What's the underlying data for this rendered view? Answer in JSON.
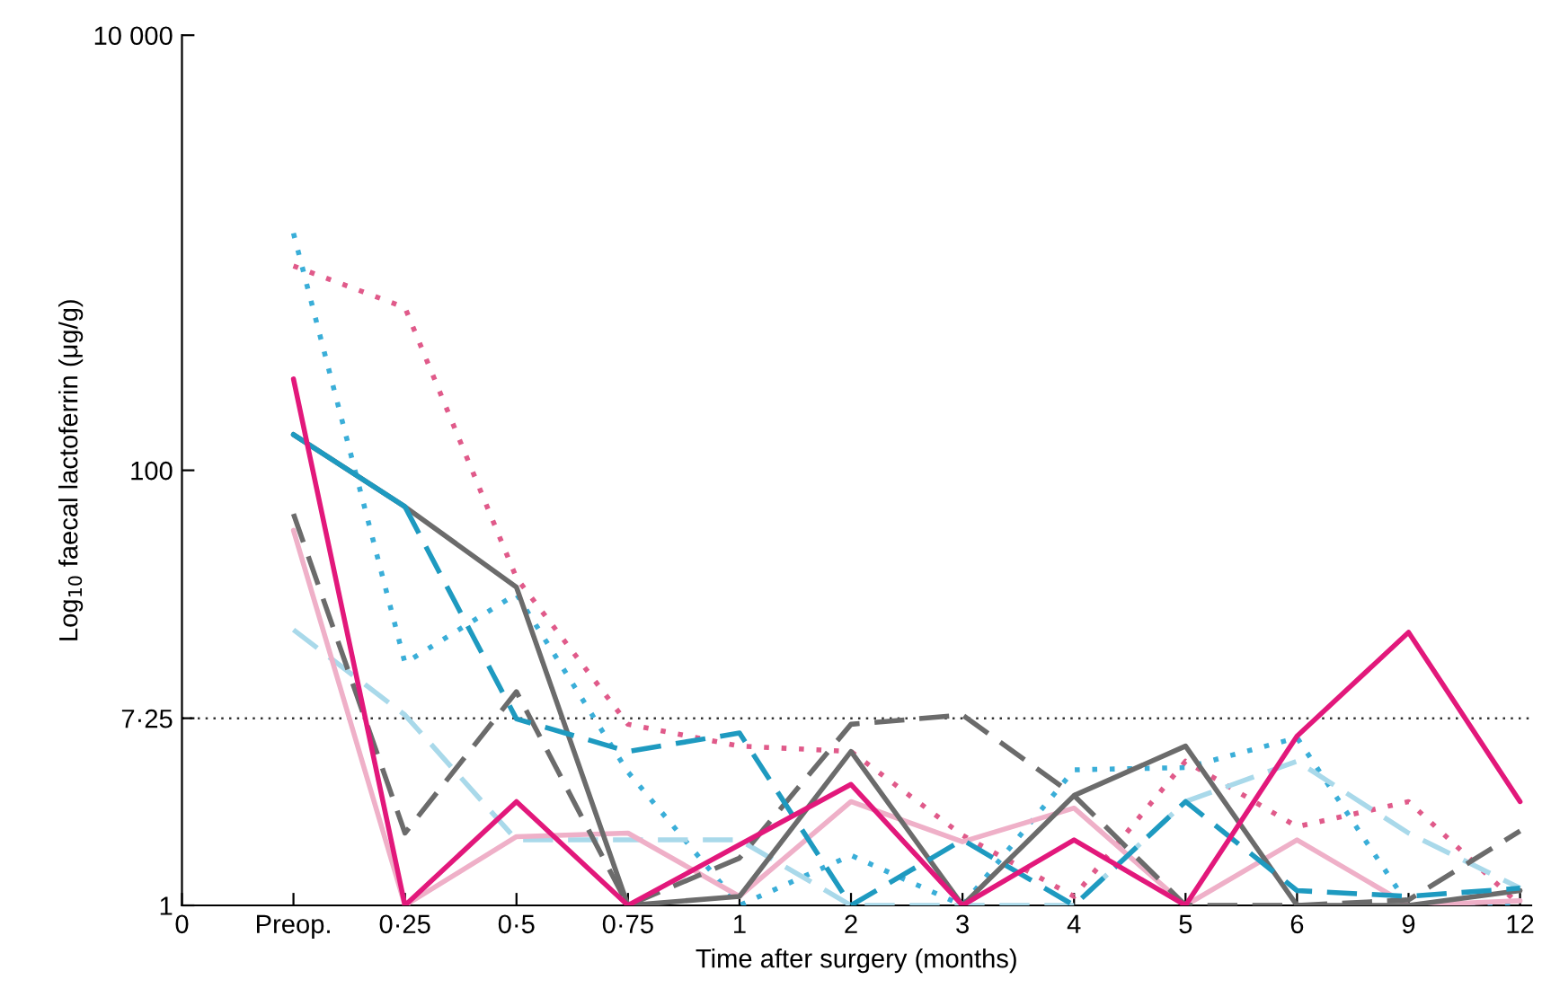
{
  "chart_data": {
    "type": "line",
    "xlabel": "Time after surgery (months)",
    "ylabel": "Log$_{10}$ faecal lactoferrin (μg/g)",
    "categories": [
      "0",
      "Preop.",
      "0·25",
      "0·5",
      "0·75",
      "1",
      "2",
      "3",
      "4",
      "5",
      "6",
      "9",
      "12"
    ],
    "log": "y",
    "ylim": [
      1,
      10000
    ],
    "yticks": [
      1,
      {
        "value": 7.25,
        "label": "7·25"
      },
      100,
      {
        "value": 10000,
        "label": "10 000"
      }
    ],
    "grid": false,
    "legend": false,
    "marker": "none",
    "ref_lines": [
      {
        "axis": "y",
        "value": 7.25,
        "color": "#333333",
        "line_style": "dotted"
      }
    ],
    "series": [
      {
        "color": "#e05a8a",
        "line_style": "dotted",
        "values": [
          null,
          870,
          560,
          32,
          6.8,
          5.4,
          5.1,
          2.1,
          1.1,
          4.6,
          2.3,
          3.0,
          1
        ]
      },
      {
        "color": "#3aaed8",
        "line_style": "dotted",
        "values": [
          null,
          1230,
          13,
          27,
          4.1,
          1,
          1.7,
          1,
          4.2,
          4.3,
          5.9,
          1,
          1
        ]
      },
      {
        "color": "#a9d9ea",
        "line_style": "dashed",
        "values": [
          null,
          18.5,
          7.5,
          2.0,
          2.0,
          2.0,
          1,
          1,
          1,
          3.0,
          4.6,
          2.15,
          1.2
        ]
      },
      {
        "color": "#efb0c8",
        "line_style": "solid",
        "values": [
          null,
          53,
          1,
          2.07,
          2.15,
          1.1,
          3.0,
          1.96,
          2.8,
          1,
          2.0,
          1,
          1.05
        ]
      },
      {
        "color": "#6b6b6b",
        "line_style": "dashed",
        "values": [
          null,
          63,
          2.15,
          9.6,
          1,
          1.65,
          6.8,
          7.5,
          3.2,
          1,
          1,
          1.06,
          2.2
        ]
      },
      {
        "color": "#6b6b6b",
        "line_style": "solid",
        "values": [
          null,
          146,
          68,
          29,
          1,
          1.1,
          5.1,
          1,
          3.2,
          5.4,
          1,
          1,
          1.17
        ]
      },
      {
        "color": "#1e9ac0",
        "line_style": "dashed",
        "values": [
          null,
          null,
          68,
          7.2,
          5.1,
          6.2,
          1,
          2.0,
          1,
          3.0,
          1.17,
          1.1,
          1.2
        ]
      },
      {
        "color": "#1e9ac0",
        "line_style": "solid",
        "values": [
          null,
          146,
          68,
          null,
          null,
          null,
          null,
          null,
          null,
          null,
          null,
          null,
          null
        ]
      },
      {
        "color": "#e2187b",
        "line_style": "solid",
        "values": [
          null,
          263,
          1,
          3.0,
          1,
          1.9,
          3.6,
          1,
          2.0,
          1,
          6.0,
          18,
          3.0
        ]
      }
    ]
  }
}
